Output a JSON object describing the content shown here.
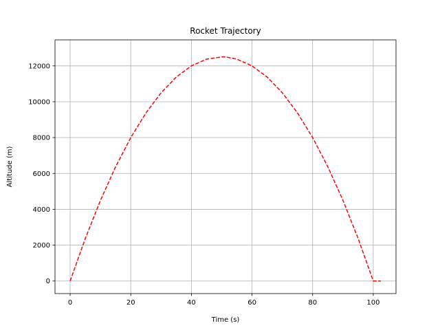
{
  "chart_data": {
    "type": "line",
    "title": "Rocket Trajectory",
    "xlabel": "Time (s)",
    "ylabel": "Altitude (m)",
    "xlim": [
      -5,
      107.5
    ],
    "ylim": [
      -700,
      13450
    ],
    "xticks": [
      0,
      20,
      40,
      60,
      80,
      100
    ],
    "yticks": [
      0,
      2000,
      4000,
      6000,
      8000,
      10000,
      12000
    ],
    "grid": true,
    "series": [
      {
        "color": "#ff0000",
        "line_style": "dashed",
        "x": [
          0,
          5,
          10,
          15,
          20,
          25,
          30,
          35,
          40,
          45,
          50,
          51.25,
          55,
          60,
          65,
          70,
          75,
          80,
          85,
          90,
          95,
          100,
          102.5
        ],
        "y": [
          0,
          2375,
          4500,
          6375,
          8000,
          9375,
          10500,
          11375,
          12000,
          12375,
          12500,
          12503,
          12375,
          12000,
          11375,
          10500,
          9375,
          8000,
          6375,
          4500,
          2375,
          0,
          -1
        ]
      }
    ]
  }
}
